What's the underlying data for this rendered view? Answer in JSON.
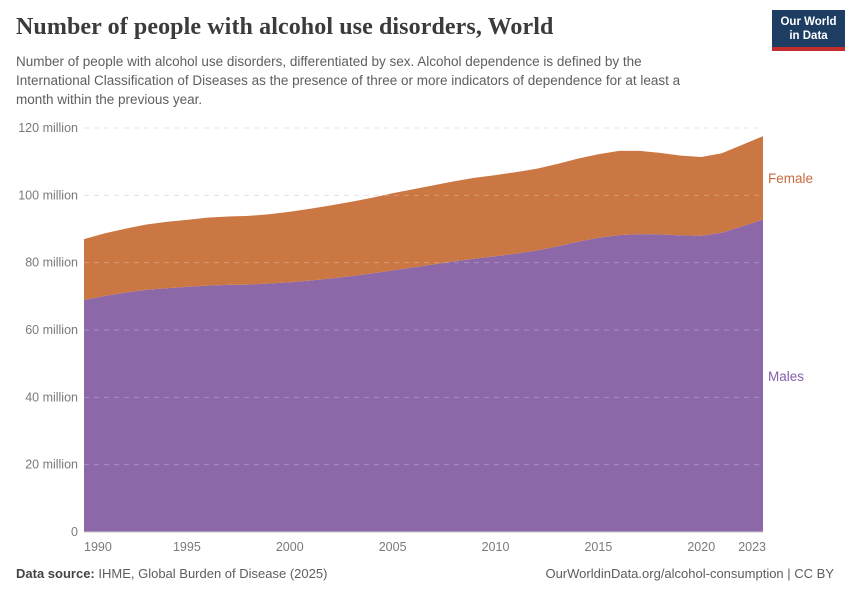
{
  "header": {
    "title": "Number of people with alcohol use disorders, World",
    "subtitle": "Number of people with alcohol use disorders, differentiated by sex. Alcohol dependence is defined by the\nInternational Classification of Diseases as the presence of three or more indicators of dependence for at least a\nmonth within the previous year.",
    "logo": {
      "line1": "Our World",
      "line2": "in Data",
      "bg_color": "#1d3d63",
      "accent_color": "#c22c2c"
    }
  },
  "chart_data": {
    "type": "area",
    "stacked": true,
    "title": "Number of people with alcohol use disorders, World",
    "xlabel": "",
    "ylabel": "",
    "x": [
      1990,
      1991,
      1992,
      1993,
      1994,
      1995,
      1996,
      1997,
      1998,
      1999,
      2000,
      2001,
      2002,
      2003,
      2004,
      2005,
      2006,
      2007,
      2008,
      2009,
      2010,
      2011,
      2012,
      2013,
      2014,
      2015,
      2016,
      2017,
      2018,
      2019,
      2020,
      2021,
      2022,
      2023
    ],
    "series": [
      {
        "name": "Males",
        "unit": "million",
        "color": "#8c68a9",
        "label_color": "#8860ab",
        "values": [
          68.9,
          70.1,
          71.1,
          71.9,
          72.4,
          72.8,
          73.2,
          73.4,
          73.5,
          73.8,
          74.2,
          74.7,
          75.3,
          76.0,
          76.8,
          77.7,
          78.6,
          79.5,
          80.4,
          81.2,
          81.9,
          82.7,
          83.6,
          84.8,
          86.2,
          87.4,
          88.2,
          88.5,
          88.4,
          88.1,
          88.0,
          88.9,
          90.8,
          92.8
        ]
      },
      {
        "name": "Female",
        "unit": "million",
        "color": "#cb7743",
        "label_color": "#c86a3e",
        "values": [
          18.1,
          18.6,
          19.0,
          19.4,
          19.7,
          19.9,
          20.2,
          20.3,
          20.4,
          20.6,
          20.9,
          21.3,
          21.7,
          22.1,
          22.5,
          22.9,
          23.2,
          23.5,
          23.8,
          24.0,
          24.1,
          24.2,
          24.3,
          24.5,
          24.7,
          24.8,
          25.0,
          24.7,
          24.2,
          23.7,
          23.4,
          23.6,
          24.2,
          24.8
        ]
      }
    ],
    "x_ticks": [
      1990,
      1995,
      2000,
      2005,
      2010,
      2015,
      2020,
      2023
    ],
    "y_ticks": [
      0,
      20,
      40,
      60,
      80,
      100,
      120
    ],
    "y_tick_suffix": " million",
    "ylim": [
      0,
      120
    ],
    "xlim": [
      1990,
      2023
    ],
    "grid": "dashed-horizontal",
    "legend_position": "right-of-plot",
    "axis_text_color": "#7a7a7a",
    "grid_color": "#dcdcdc",
    "axis_line_color": "#c8c8c8"
  },
  "footer": {
    "source_label": "Data source:",
    "source_value": " IHME, Global Burden of Disease (2025)",
    "credit": "OurWorldinData.org/alcohol-consumption | CC BY"
  }
}
